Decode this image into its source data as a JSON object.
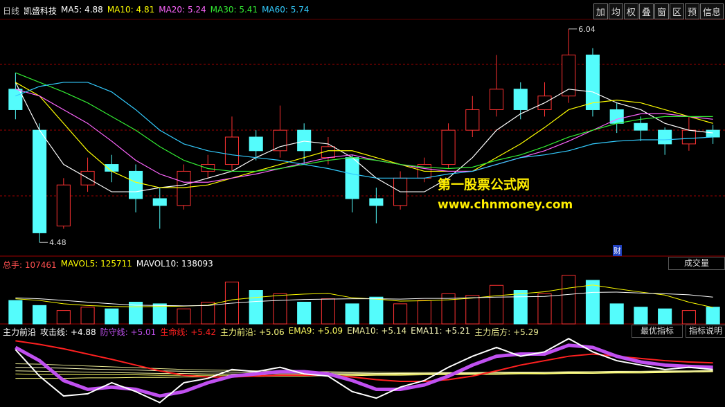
{
  "header": {
    "buttons": [
      "加",
      "均",
      "权",
      "叠",
      "窗",
      "区",
      "预",
      "信息"
    ],
    "watermark": [
      "第一股票公式网",
      "www.chnmoney.com"
    ],
    "marker": "财",
    "volume_button": "成交量",
    "indicator_buttons": [
      "最优指标",
      "指标说明"
    ]
  },
  "chart_data": [
    {
      "type": "candlestick",
      "period": "日线",
      "title": "凯盛科技",
      "ylim": [
        4.38,
        6.11
      ],
      "up_color": "#ff3232",
      "down_color": "#54fcfc",
      "open": [
        5.6,
        5.3,
        4.6,
        4.9,
        5.05,
        5.0,
        4.8,
        4.75,
        5.0,
        5.05,
        5.25,
        5.15,
        5.3,
        5.1,
        5.1,
        4.8,
        4.75,
        4.95,
        5.05,
        5.3,
        5.45,
        5.6,
        5.45,
        5.55,
        5.85,
        5.45,
        5.35,
        5.3,
        5.2,
        5.3
      ],
      "high": [
        5.72,
        5.35,
        4.95,
        5.1,
        5.12,
        5.05,
        4.88,
        5.05,
        5.12,
        5.4,
        5.3,
        5.48,
        5.35,
        5.25,
        5.12,
        4.88,
        5.0,
        5.1,
        5.35,
        5.55,
        5.85,
        5.65,
        5.65,
        6.04,
        5.9,
        5.5,
        5.4,
        5.32,
        5.4,
        5.34
      ],
      "low": [
        5.38,
        4.48,
        4.58,
        4.85,
        4.92,
        4.7,
        4.58,
        4.72,
        4.95,
        5.0,
        5.08,
        5.1,
        5.05,
        5.05,
        4.7,
        4.62,
        4.72,
        4.92,
        5.02,
        5.25,
        5.4,
        5.38,
        5.4,
        5.5,
        5.4,
        5.28,
        5.22,
        5.12,
        5.15,
        5.2
      ],
      "close": [
        5.45,
        4.55,
        4.9,
        5.0,
        5.0,
        4.8,
        4.75,
        5.0,
        5.05,
        5.25,
        5.15,
        5.3,
        5.15,
        5.18,
        4.8,
        4.75,
        4.95,
        5.05,
        5.3,
        5.45,
        5.6,
        5.45,
        5.55,
        5.85,
        5.45,
        5.35,
        5.3,
        5.2,
        5.3,
        5.25
      ],
      "series": [
        {
          "name": "MA5",
          "readout": 4.88,
          "color": "#ffffff",
          "values": [
            5.65,
            5.3,
            5.05,
            4.95,
            4.85,
            4.85,
            4.88,
            4.9,
            4.95,
            5.0,
            5.1,
            5.18,
            5.22,
            5.2,
            5.1,
            4.95,
            4.85,
            4.85,
            4.95,
            5.1,
            5.3,
            5.42,
            5.5,
            5.6,
            5.58,
            5.5,
            5.45,
            5.35,
            5.3,
            5.28
          ]
        },
        {
          "name": "MA10",
          "readout": 4.81,
          "color": "#ffff00",
          "values": [
            5.65,
            5.55,
            5.35,
            5.15,
            5.0,
            4.92,
            4.88,
            4.88,
            4.9,
            4.95,
            5.0,
            5.05,
            5.1,
            5.15,
            5.15,
            5.1,
            5.05,
            5.0,
            5.0,
            5.0,
            5.1,
            5.2,
            5.32,
            5.45,
            5.5,
            5.52,
            5.5,
            5.45,
            5.4,
            5.35
          ]
        },
        {
          "name": "MA20",
          "readout": 5.24,
          "color": "#ff66ff",
          "values": [
            5.6,
            5.55,
            5.45,
            5.35,
            5.22,
            5.08,
            4.98,
            4.92,
            4.92,
            4.95,
            4.98,
            5.02,
            5.06,
            5.1,
            5.12,
            5.08,
            5.05,
            5.02,
            5.0,
            5.0,
            5.05,
            5.1,
            5.15,
            5.22,
            5.3,
            5.38,
            5.42,
            5.42,
            5.4,
            5.38
          ]
        },
        {
          "name": "MA30",
          "readout": 5.41,
          "color": "#33ee33",
          "values": [
            5.72,
            5.65,
            5.58,
            5.5,
            5.4,
            5.3,
            5.18,
            5.08,
            5.02,
            5.0,
            5.0,
            5.02,
            5.05,
            5.08,
            5.1,
            5.08,
            5.05,
            5.03,
            5.02,
            5.03,
            5.08,
            5.12,
            5.18,
            5.25,
            5.3,
            5.35,
            5.38,
            5.4,
            5.4,
            5.4
          ]
        },
        {
          "name": "MA60",
          "readout": 5.74,
          "color": "#33ccff",
          "values": [
            5.55,
            5.62,
            5.65,
            5.65,
            5.58,
            5.45,
            5.3,
            5.2,
            5.15,
            5.12,
            5.1,
            5.08,
            5.05,
            5.02,
            4.98,
            4.95,
            4.95,
            4.95,
            4.98,
            5.0,
            5.05,
            5.1,
            5.12,
            5.15,
            5.2,
            5.22,
            5.23,
            5.23,
            5.24,
            5.25
          ]
        }
      ]
    },
    {
      "type": "bar",
      "ylim": [
        0,
        330000
      ],
      "series": [
        {
          "name": "总手",
          "readout": 107461,
          "color": "#ff5050",
          "values": [
            140000,
            110000,
            80000,
            100000,
            90000,
            130000,
            120000,
            90000,
            130000,
            250000,
            200000,
            180000,
            130000,
            150000,
            120000,
            160000,
            120000,
            140000,
            180000,
            170000,
            230000,
            200000,
            180000,
            290000,
            260000,
            120000,
            100000,
            90000,
            80000,
            100000
          ]
        },
        {
          "name": "MAVOL5",
          "readout": 125711,
          "color": "#ffff00",
          "values": [
            150000,
            140000,
            120000,
            110000,
            104000,
            102000,
            104000,
            106000,
            112000,
            144000,
            158000,
            170000,
            178000,
            182000,
            156000,
            148000,
            136000,
            138000,
            144000,
            154000,
            168000,
            180000,
            192000,
            214000,
            232000,
            210000,
            190000,
            172000,
            130000,
            98000
          ]
        },
        {
          "name": "MAVOL10",
          "readout": 138093,
          "color": "#ffffff",
          "values": [
            155000,
            150000,
            140000,
            130000,
            120000,
            112000,
            110000,
            108000,
            110000,
            124000,
            134000,
            140000,
            146000,
            148000,
            150000,
            150000,
            148000,
            152000,
            152000,
            156000,
            160000,
            162000,
            164000,
            176000,
            188000,
            190000,
            184000,
            180000,
            174000,
            160000
          ]
        }
      ]
    },
    {
      "type": "line",
      "title": "主力前沿",
      "ylim": [
        4.4,
        6.0
      ],
      "series": [
        {
          "name": "攻击线",
          "readout": "+4.88",
          "color": "#ffffff",
          "values": [
            5.7,
            5.1,
            4.65,
            4.7,
            4.95,
            4.75,
            4.5,
            4.95,
            5.05,
            5.25,
            5.2,
            5.3,
            5.15,
            5.1,
            4.75,
            4.6,
            4.85,
            5.0,
            5.3,
            5.55,
            5.75,
            5.55,
            5.65,
            5.95,
            5.65,
            5.45,
            5.35,
            5.25,
            5.3,
            5.25
          ]
        },
        {
          "name": "防守线",
          "readout": "+5.01",
          "color": "#c050f0",
          "values": [
            5.75,
            5.45,
            5.0,
            4.8,
            4.85,
            4.8,
            4.65,
            4.75,
            4.95,
            5.1,
            5.15,
            5.2,
            5.2,
            5.15,
            5.0,
            4.8,
            4.8,
            4.9,
            5.1,
            5.35,
            5.55,
            5.6,
            5.6,
            5.8,
            5.75,
            5.55,
            5.42,
            5.35,
            5.32,
            5.3
          ]
        },
        {
          "name": "生命线",
          "readout": "+5.42",
          "color": "#ff2020",
          "values": [
            5.9,
            5.82,
            5.72,
            5.6,
            5.48,
            5.35,
            5.22,
            5.12,
            5.08,
            5.08,
            5.1,
            5.12,
            5.12,
            5.12,
            5.08,
            5.02,
            4.98,
            4.98,
            5.02,
            5.1,
            5.22,
            5.35,
            5.45,
            5.55,
            5.6,
            5.55,
            5.5,
            5.45,
            5.42,
            5.4
          ]
        },
        {
          "name": "主力前沿",
          "readout": "+5.06",
          "color": "#ffff80",
          "values": [
            5.05,
            5.05,
            5.05,
            5.06,
            5.06,
            5.07,
            5.07,
            5.08,
            5.08,
            5.09,
            5.09,
            5.1,
            5.1,
            5.11,
            5.11,
            5.12,
            5.12,
            5.13,
            5.13,
            5.14,
            5.14,
            5.15,
            5.15,
            5.16,
            5.16,
            5.17,
            5.17,
            5.18,
            5.19,
            5.2
          ]
        },
        {
          "name": "EMA9",
          "readout": "+5.09",
          "color": "#ffff60",
          "values": [
            5.15,
            5.14,
            5.14,
            5.13,
            5.13,
            5.13,
            5.12,
            5.12,
            5.12,
            5.12,
            5.12,
            5.12,
            5.13,
            5.13,
            5.13,
            5.13,
            5.14,
            5.14,
            5.14,
            5.15,
            5.15,
            5.16,
            5.16,
            5.17,
            5.17,
            5.18,
            5.18,
            5.19,
            5.19,
            5.2
          ]
        },
        {
          "name": "EMA10",
          "readout": "+5.14",
          "color": "#f0f0a0",
          "values": [
            5.22,
            5.21,
            5.2,
            5.19,
            5.18,
            5.17,
            5.16,
            5.16,
            5.15,
            5.15,
            5.15,
            5.15,
            5.15,
            5.15,
            5.15,
            5.15,
            5.15,
            5.16,
            5.16,
            5.16,
            5.17,
            5.17,
            5.18,
            5.18,
            5.19,
            5.19,
            5.2,
            5.2,
            5.21,
            5.21
          ]
        },
        {
          "name": "EMA11",
          "readout": "+5.21",
          "color": "#ffffc0",
          "values": [
            5.3,
            5.29,
            5.28,
            5.26,
            5.25,
            5.24,
            5.22,
            5.21,
            5.2,
            5.19,
            5.18,
            5.18,
            5.17,
            5.17,
            5.17,
            5.16,
            5.16,
            5.16,
            5.17,
            5.17,
            5.17,
            5.18,
            5.18,
            5.19,
            5.19,
            5.2,
            5.2,
            5.21,
            5.21,
            5.22
          ]
        },
        {
          "name": "主力后方",
          "readout": "+5.29",
          "color": "#e8e890",
          "values": [
            5.38,
            5.37,
            5.35,
            5.33,
            5.31,
            5.29,
            5.27,
            5.25,
            5.24,
            5.23,
            5.22,
            5.21,
            5.2,
            5.2,
            5.19,
            5.19,
            5.18,
            5.18,
            5.18,
            5.18,
            5.19,
            5.19,
            5.19,
            5.2,
            5.2,
            5.21,
            5.21,
            5.22,
            5.22,
            5.23
          ]
        }
      ]
    }
  ]
}
